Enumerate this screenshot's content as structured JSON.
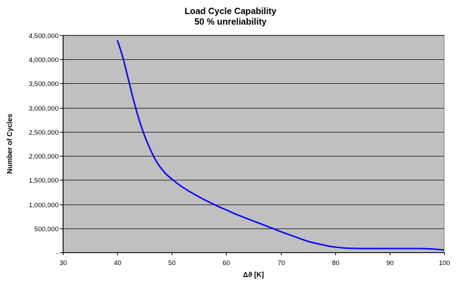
{
  "chart_data": {
    "type": "line",
    "title": "Load Cycle Capability",
    "subtitle": "50 % unreliability",
    "xlabel": "Δϑ [K]",
    "ylabel": "Number of Cycles",
    "xlim": [
      30,
      100
    ],
    "ylim": [
      0,
      4500000
    ],
    "xticks": [
      30,
      40,
      50,
      60,
      70,
      80,
      90,
      100
    ],
    "yticks": [
      0,
      500000,
      1000000,
      1500000,
      2000000,
      2500000,
      3000000,
      3500000,
      4000000,
      4500000
    ],
    "ytick_labels": [
      "-",
      "500,000",
      "1,000,000",
      "1,500,000",
      "2,000,000",
      "2,500,000",
      "3,000,000",
      "3,500,000",
      "4,000,000",
      "4,500,000"
    ],
    "grid": true,
    "legend": false,
    "plot_background": "#c0c0c0",
    "series": [
      {
        "color": "#0000ff",
        "x": [
          40,
          41,
          42,
          43,
          44,
          45,
          46,
          47,
          48,
          49,
          50,
          52,
          55,
          58,
          60,
          62,
          65,
          68,
          70,
          72,
          75,
          78,
          80,
          82,
          85,
          88,
          90,
          92,
          95,
          98,
          100
        ],
        "y": [
          4400000,
          4050000,
          3600000,
          3150000,
          2750000,
          2420000,
          2150000,
          1920000,
          1750000,
          1620000,
          1520000,
          1350000,
          1150000,
          980000,
          880000,
          780000,
          650000,
          520000,
          430000,
          350000,
          230000,
          150000,
          110000,
          90000,
          80000,
          80000,
          80000,
          80000,
          80000,
          70000,
          50000
        ]
      }
    ]
  }
}
